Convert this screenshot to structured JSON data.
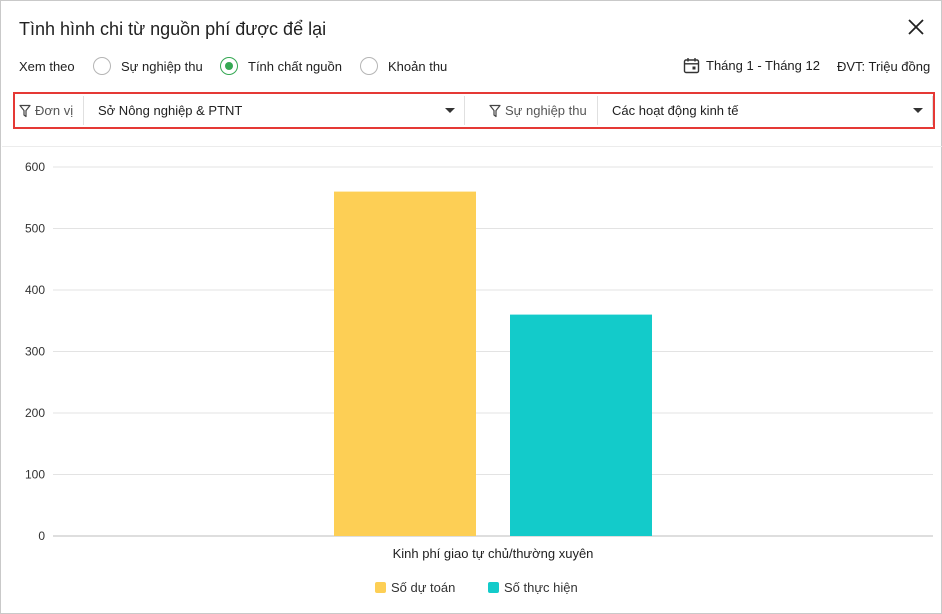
{
  "dialog": {
    "title": "Tình hình chi từ nguồn phí được để lại"
  },
  "view_options": {
    "label": "Xem theo",
    "radios": [
      {
        "label": "Sự nghiệp thu",
        "checked": false
      },
      {
        "label": "Tính chất nguồn",
        "checked": true
      },
      {
        "label": "Khoản thu",
        "checked": false
      }
    ],
    "period": "Tháng 1 - Tháng 12",
    "unit": "ĐVT: Triệu đồng"
  },
  "filters": {
    "unit_label": "Đơn vị",
    "unit_value": "Sở Nông nghiệp & PTNT",
    "career_label": "Sự nghiệp thu",
    "career_value": "Các hoạt động kinh tế"
  },
  "chart_data": {
    "type": "bar",
    "categories": [
      "Kinh phí giao tự chủ/thường xuyên"
    ],
    "series": [
      {
        "name": "Số dự toán",
        "values": [
          560
        ],
        "color": "#fdcf55"
      },
      {
        "name": "Số thực hiện",
        "values": [
          360
        ],
        "color": "#13cbca"
      }
    ],
    "ylim": [
      0,
      600
    ],
    "yticks": [
      0,
      100,
      200,
      300,
      400,
      500,
      600
    ],
    "grid": true,
    "legend": "bottom-center"
  }
}
